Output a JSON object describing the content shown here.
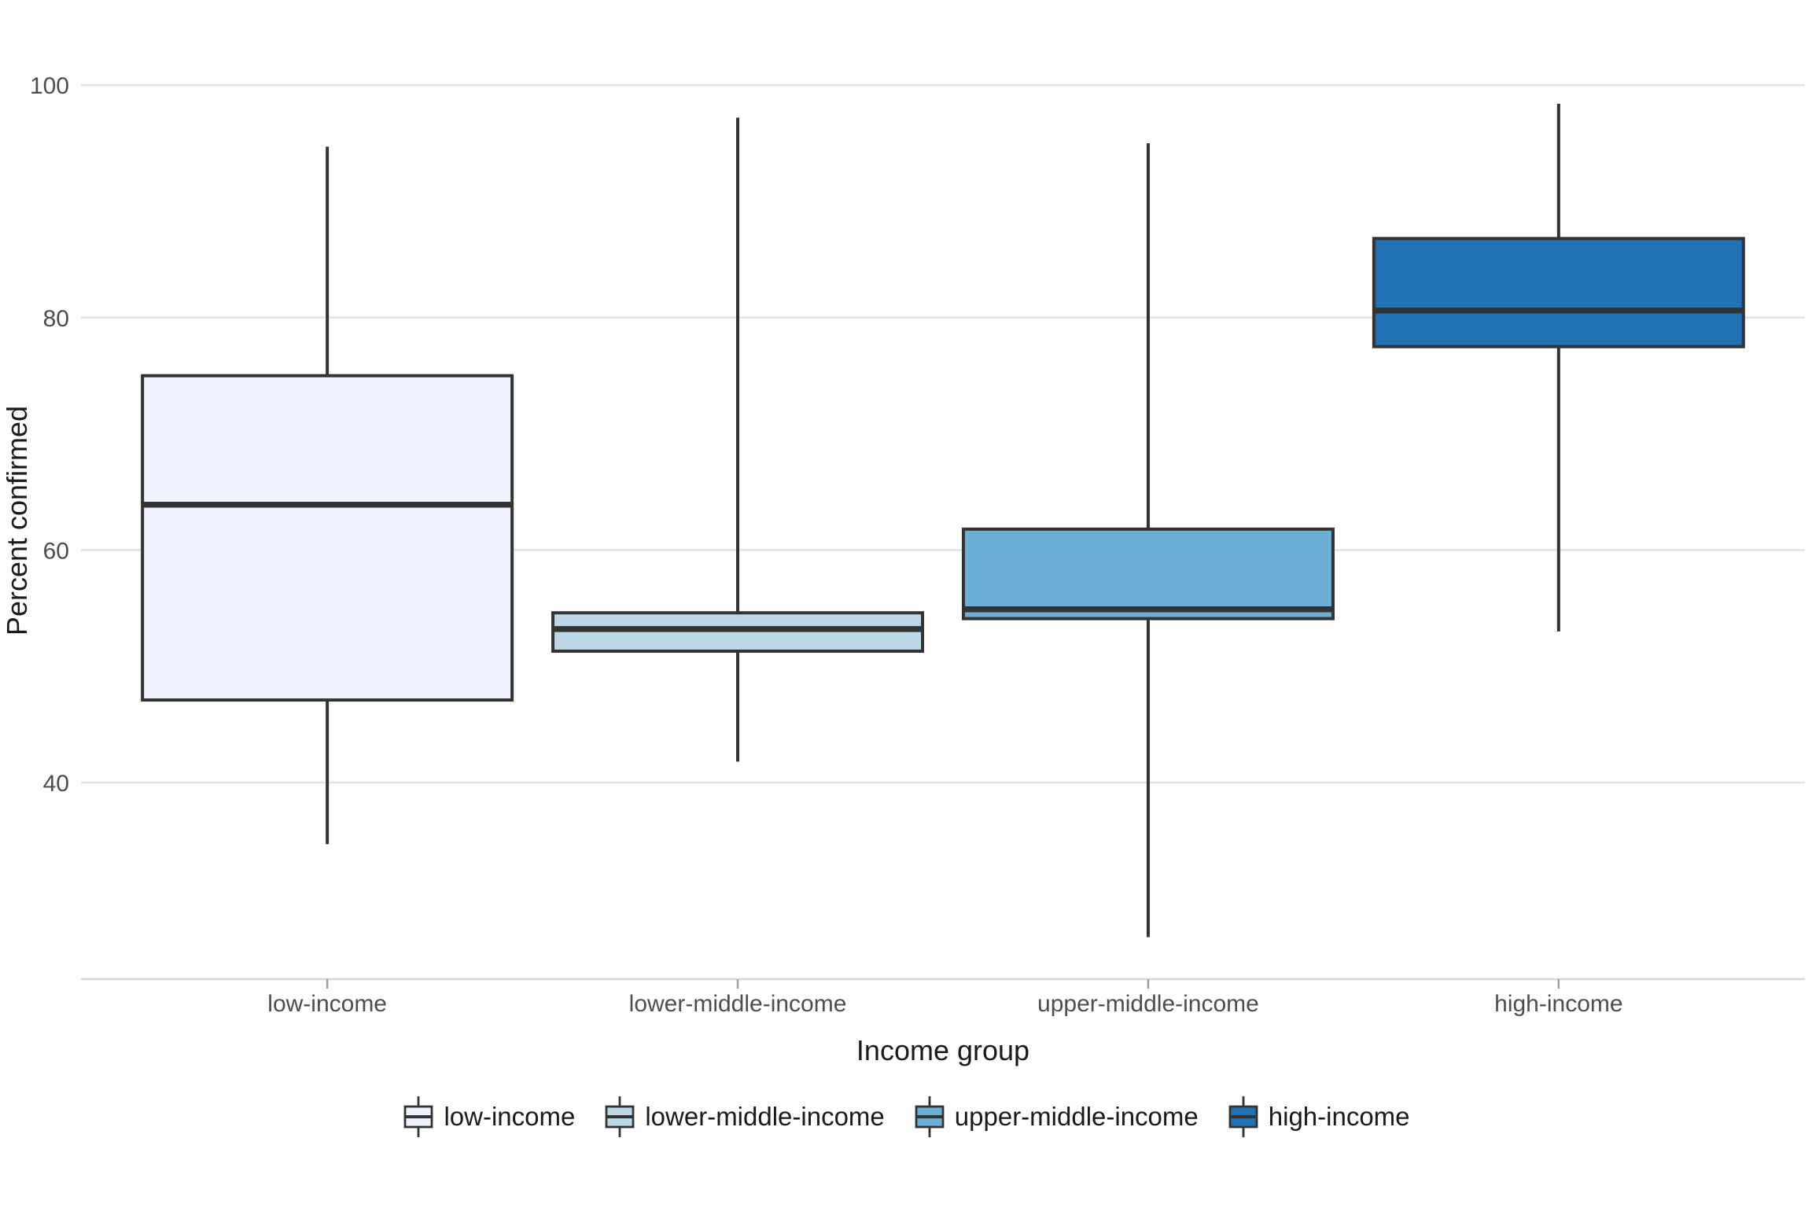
{
  "figure": {
    "background": "#ffffff",
    "has_title": false
  },
  "chart_data": {
    "type": "boxplot",
    "title": "",
    "xlabel": "Income group",
    "ylabel": "Percent confirmed",
    "categories": [
      "low-income",
      "lower-middle-income",
      "upper-middle-income",
      "high-income"
    ],
    "y_ticks": [
      40,
      60,
      80,
      100
    ],
    "ylim": [
      23.1,
      102.0
    ],
    "grid": "horizontal major gridlines only, no minor, no vertical",
    "legend_position": "bottom-center",
    "orientation": "vertical",
    "series": [
      {
        "name": "low-income",
        "fill": "#EFF3FF",
        "whisker_low": 34.7,
        "q1": 47.1,
        "median": 63.9,
        "q3": 75.0,
        "whisker_high": 94.7
      },
      {
        "name": "lower-middle-income",
        "fill": "#BDD7E7",
        "whisker_low": 41.8,
        "q1": 51.3,
        "median": 53.2,
        "q3": 54.6,
        "whisker_high": 97.2
      },
      {
        "name": "upper-middle-income",
        "fill": "#6BAED6",
        "whisker_low": 26.7,
        "q1": 54.1,
        "median": 54.9,
        "q3": 61.8,
        "whisker_high": 95.0
      },
      {
        "name": "high-income",
        "fill": "#2171B5",
        "whisker_low": 53.0,
        "q1": 77.5,
        "median": 80.6,
        "q3": 86.8,
        "whisker_high": 98.4
      }
    ],
    "colors": {
      "box_stroke": "#333333",
      "gridline": "#e3e3e3",
      "axis_line": "#d6d6d6",
      "tick_mark": "#9e9e9e",
      "tick_label": "#4d4d4d",
      "axis_title": "#1a1a1a"
    }
  }
}
